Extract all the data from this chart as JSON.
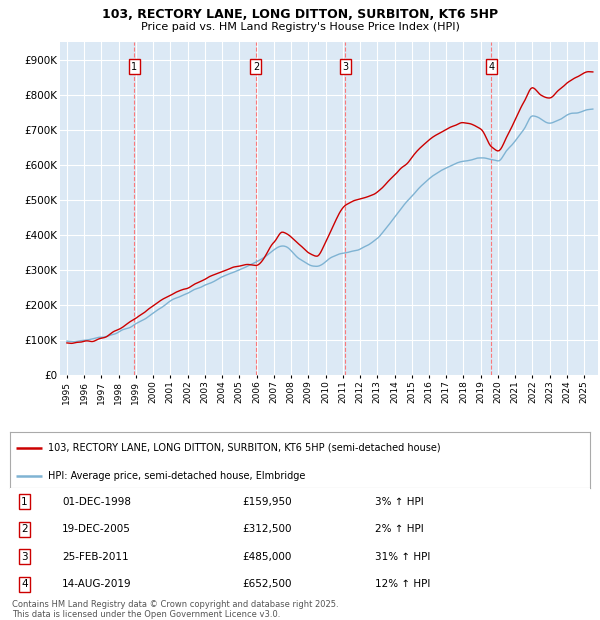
{
  "title": "103, RECTORY LANE, LONG DITTON, SURBITON, KT6 5HP",
  "subtitle": "Price paid vs. HM Land Registry's House Price Index (HPI)",
  "background_color": "#dce9f5",
  "plot_bg_color": "#dce9f5",
  "grid_color": "#ffffff",
  "ylim": [
    0,
    950000
  ],
  "yticks": [
    0,
    100000,
    200000,
    300000,
    400000,
    500000,
    600000,
    700000,
    800000,
    900000
  ],
  "ytick_labels": [
    "£0",
    "£100K",
    "£200K",
    "£300K",
    "£400K",
    "£500K",
    "£600K",
    "£700K",
    "£800K",
    "£900K"
  ],
  "legend_line1": "103, RECTORY LANE, LONG DITTON, SURBITON, KT6 5HP (semi-detached house)",
  "legend_line2": "HPI: Average price, semi-detached house, Elmbridge",
  "sales": [
    {
      "num": 1,
      "date": "01-DEC-1998",
      "price": "£159,950",
      "change": "3% ↑ HPI",
      "year": 1998.92,
      "value": 159950
    },
    {
      "num": 2,
      "date": "19-DEC-2005",
      "price": "£312,500",
      "change": "2% ↑ HPI",
      "year": 2005.96,
      "value": 312500
    },
    {
      "num": 3,
      "date": "25-FEB-2011",
      "price": "£485,000",
      "change": "31% ↑ HPI",
      "year": 2011.15,
      "value": 485000
    },
    {
      "num": 4,
      "date": "14-AUG-2019",
      "price": "£652,500",
      "change": "12% ↑ HPI",
      "year": 2019.62,
      "value": 652500
    }
  ],
  "footer": "Contains HM Land Registry data © Crown copyright and database right 2025.\nThis data is licensed under the Open Government Licence v3.0.",
  "red_color": "#cc0000",
  "blue_color": "#7fb3d3",
  "vline_color": "#ff6666",
  "xlim_left": 1994.6,
  "xlim_right": 2025.8,
  "xtick_years": [
    1995,
    1996,
    1997,
    1998,
    1999,
    2000,
    2001,
    2002,
    2003,
    2004,
    2005,
    2006,
    2007,
    2008,
    2009,
    2010,
    2011,
    2012,
    2013,
    2014,
    2015,
    2016,
    2017,
    2018,
    2019,
    2020,
    2021,
    2022,
    2023,
    2024,
    2025
  ]
}
